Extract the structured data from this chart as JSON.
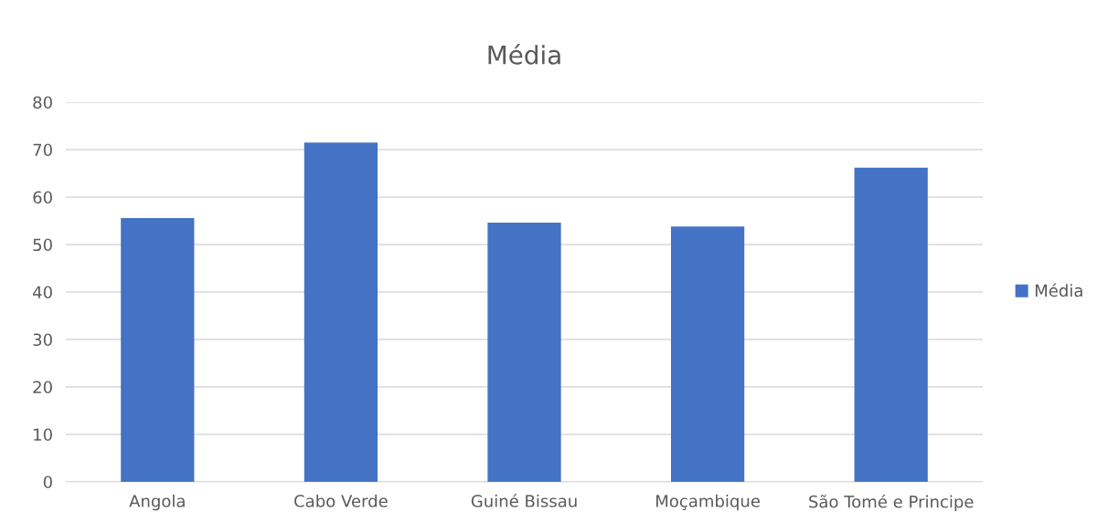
{
  "chart_data": {
    "type": "bar",
    "title": "Média",
    "categories": [
      "Angola",
      "Cabo Verde",
      "Guiné Bissau",
      "Moçambique",
      "São Tomé e Principe"
    ],
    "series": [
      {
        "name": "Média",
        "color": "#4472c4",
        "values": [
          55.6,
          71.5,
          54.6,
          53.8,
          66.2
        ]
      }
    ],
    "ylim": [
      0,
      80
    ],
    "yticks": [
      0,
      10,
      20,
      30,
      40,
      50,
      60,
      70,
      80
    ],
    "grid": "y",
    "legend": "right"
  }
}
